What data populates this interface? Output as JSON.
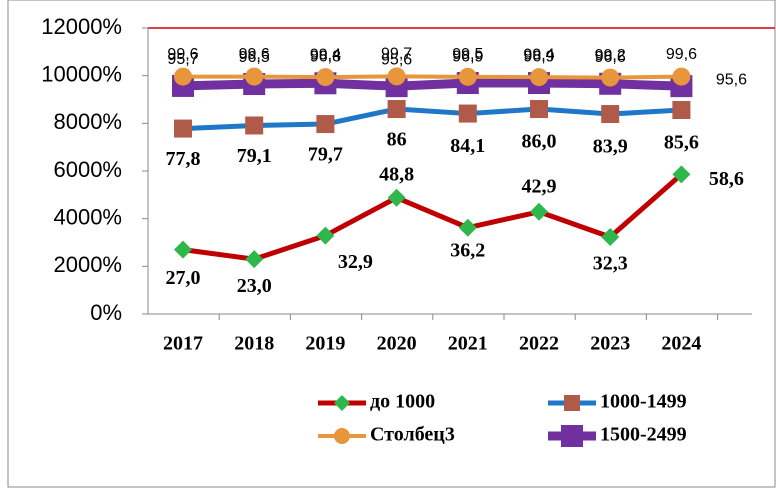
{
  "chart_data": {
    "type": "line",
    "categories": [
      "2017",
      "2018",
      "2019",
      "2020",
      "2021",
      "2022",
      "2023",
      "2024"
    ],
    "ylim": [
      0,
      120
    ],
    "yticks": [
      {
        "value": 0,
        "label": "0%"
      },
      {
        "value": 20,
        "label": "2000%"
      },
      {
        "value": 40,
        "label": "4000%"
      },
      {
        "value": 60,
        "label": "6000%"
      },
      {
        "value": 80,
        "label": "8000%"
      },
      {
        "value": 100,
        "label": "10000%"
      },
      {
        "value": 120,
        "label": "12000%"
      }
    ],
    "series": [
      {
        "name": "до 1000",
        "color": "#c00000",
        "marker": "diamond",
        "marker_color": "#2eb84c",
        "values": [
          27.0,
          23.0,
          32.9,
          48.8,
          36.2,
          42.9,
          32.3,
          58.6
        ],
        "value_labels": [
          "27,0",
          "23,0",
          "32,9",
          "48,8",
          "36,2",
          "42,9",
          "32,3",
          "58,6"
        ]
      },
      {
        "name": "1000-1499",
        "color": "#1f77c8",
        "marker": "square",
        "marker_color": "#b05a4a",
        "values": [
          77.8,
          79.1,
          79.7,
          86,
          84.1,
          86.0,
          83.9,
          85.6
        ],
        "value_labels": [
          "77,8",
          "79,1",
          "79,7",
          "86",
          "84,1",
          "86,0",
          "83,9",
          "85,6"
        ]
      },
      {
        "name": "Столбец3",
        "color": "#e8963c",
        "marker": "circle",
        "marker_color": "#e8963c",
        "values": [
          99.6,
          99.6,
          99.4,
          99.7,
          99.5,
          99.4,
          99.2,
          99.6
        ],
        "value_labels": [
          "99,6",
          "99,6",
          "99,4",
          "99,7",
          "99,5",
          "99,4",
          "99,2",
          "99,6"
        ]
      },
      {
        "name": "1500-2499",
        "color": "#7030a0",
        "marker": "square",
        "marker_color": "#7030a0",
        "values": [
          95.7,
          96.5,
          96.8,
          95.6,
          96.9,
          96.9,
          96.6,
          95.6
        ],
        "value_labels": [
          "95,7",
          "96,5",
          "96,8",
          "95,6",
          "96,9",
          "96,9",
          "96,6",
          "95,6"
        ]
      }
    ]
  }
}
